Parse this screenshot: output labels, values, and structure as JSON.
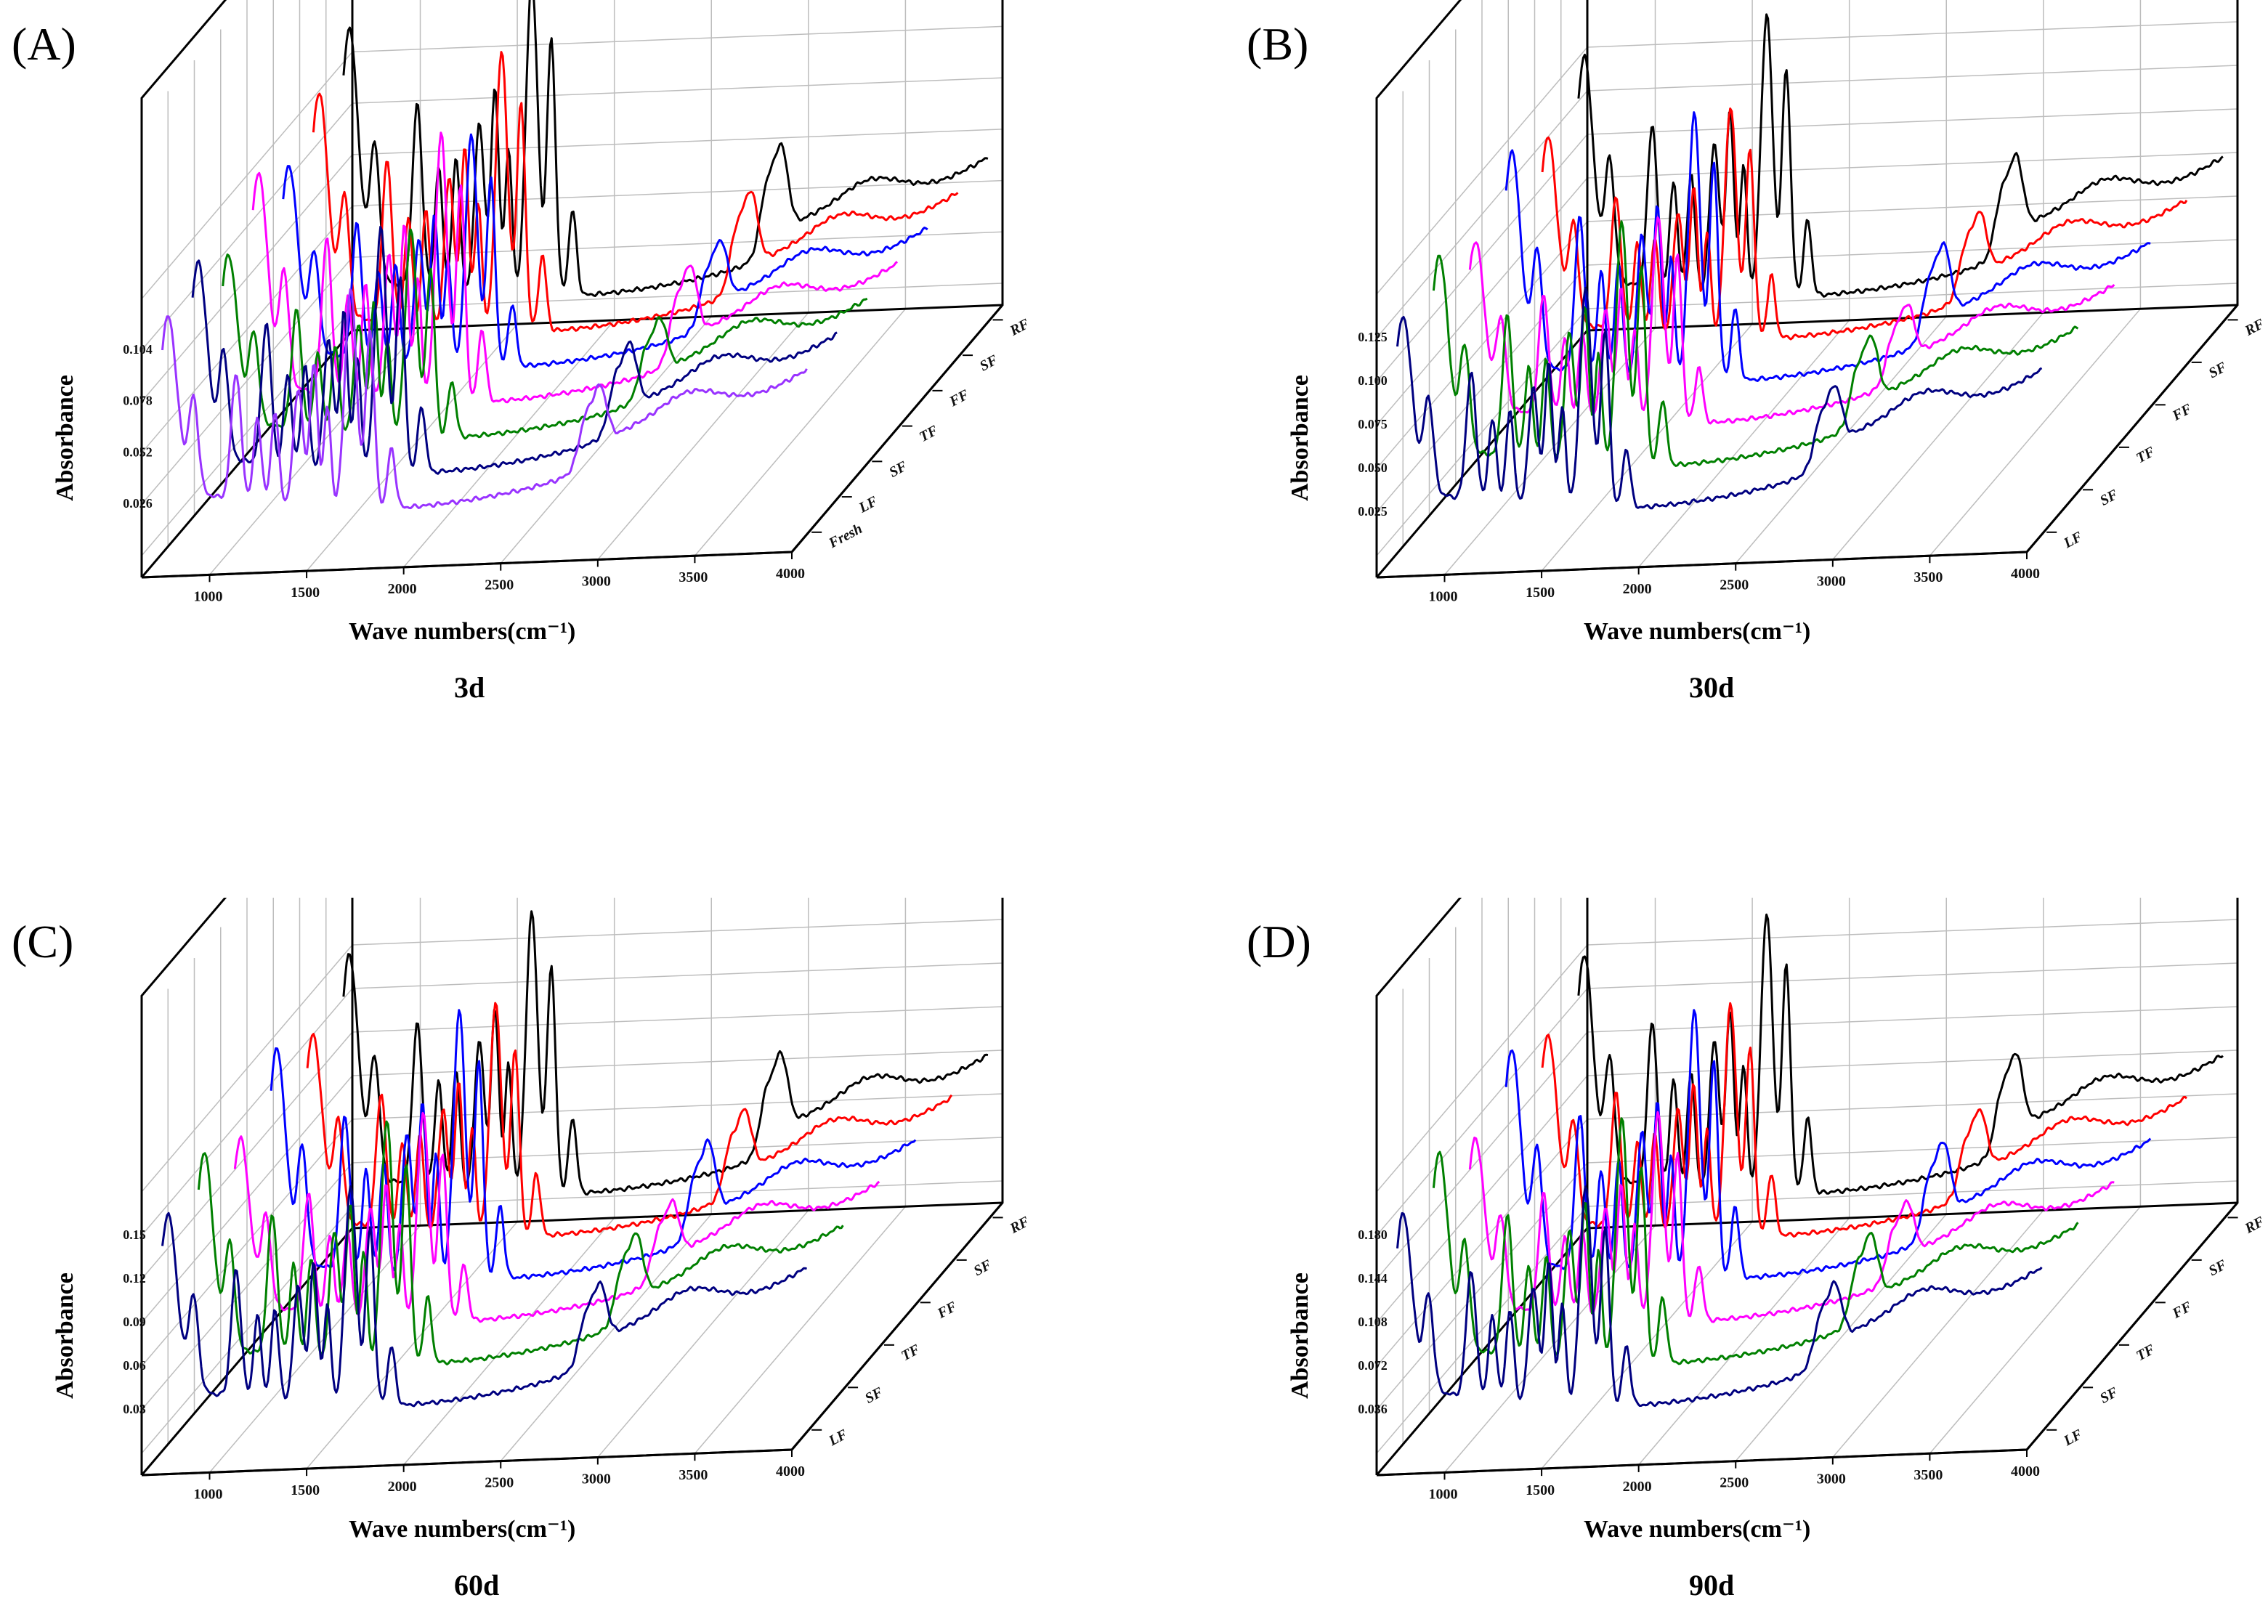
{
  "figure": {
    "description_label": "FTIR 3D spectra panels"
  },
  "chart_data": [
    {
      "panel": "(A)",
      "caption": "3d",
      "type": "line",
      "view": "3d-waterfall",
      "xlabel": "Wave numbers(cm⁻¹)",
      "ylabel": "Absorbance",
      "xlim": [
        650,
        4000
      ],
      "x_ticks": [
        1000,
        1500,
        2000,
        2500,
        3000,
        3500,
        4000
      ],
      "y_ticks": [
        "0.026",
        "0.052",
        "0.078",
        "0.104"
      ],
      "series": [
        {
          "name": "Fresh",
          "color": "#9933ff"
        },
        {
          "name": "LF",
          "color": "#000080"
        },
        {
          "name": "SF",
          "color": "#008000"
        },
        {
          "name": "TF",
          "color": "#ff00ff"
        },
        {
          "name": "FF",
          "color": "#0000ff"
        },
        {
          "name": "SF",
          "color": "#ff0000"
        },
        {
          "name": "RF",
          "color": "#000000"
        }
      ]
    },
    {
      "panel": "(B)",
      "caption": "30d",
      "type": "line",
      "view": "3d-waterfall",
      "xlabel": "Wave numbers(cm⁻¹)",
      "ylabel": "Absorbance",
      "xlim": [
        650,
        4000
      ],
      "x_ticks": [
        1000,
        1500,
        2000,
        2500,
        3000,
        3500,
        4000
      ],
      "y_ticks": [
        "0.025",
        "0.050",
        "0.075",
        "0.100",
        "0.125"
      ],
      "series": [
        {
          "name": "LF",
          "color": "#000080"
        },
        {
          "name": "SF",
          "color": "#008000"
        },
        {
          "name": "TF",
          "color": "#ff00ff"
        },
        {
          "name": "FF",
          "color": "#0000ff"
        },
        {
          "name": "SF",
          "color": "#ff0000"
        },
        {
          "name": "RF",
          "color": "#000000"
        }
      ]
    },
    {
      "panel": "(C)",
      "caption": "60d",
      "type": "line",
      "view": "3d-waterfall",
      "xlabel": "Wave numbers(cm⁻¹)",
      "ylabel": "Absorbance",
      "xlim": [
        650,
        4000
      ],
      "x_ticks": [
        1000,
        1500,
        2000,
        2500,
        3000,
        3500,
        4000
      ],
      "y_ticks": [
        "0.03",
        "0.06",
        "0.09",
        "0.12",
        "0.15"
      ],
      "series": [
        {
          "name": "LF",
          "color": "#000080"
        },
        {
          "name": "SF",
          "color": "#008000"
        },
        {
          "name": "TF",
          "color": "#ff00ff"
        },
        {
          "name": "FF",
          "color": "#0000ff"
        },
        {
          "name": "SF",
          "color": "#ff0000"
        },
        {
          "name": "RF",
          "color": "#000000"
        }
      ]
    },
    {
      "panel": "(D)",
      "caption": "90d",
      "type": "line",
      "view": "3d-waterfall",
      "xlabel": "Wave numbers(cm⁻¹)",
      "ylabel": "Absorbance",
      "xlim": [
        650,
        4000
      ],
      "x_ticks": [
        1000,
        1500,
        2000,
        2500,
        3000,
        3500,
        4000
      ],
      "y_ticks": [
        "0.036",
        "0.072",
        "0.108",
        "0.144",
        "0.180"
      ],
      "series": [
        {
          "name": "LF",
          "color": "#000080"
        },
        {
          "name": "SF",
          "color": "#008000"
        },
        {
          "name": "TF",
          "color": "#ff00ff"
        },
        {
          "name": "FF",
          "color": "#0000ff"
        },
        {
          "name": "SF",
          "color": "#ff0000"
        },
        {
          "name": "RF",
          "color": "#000000"
        }
      ]
    }
  ]
}
